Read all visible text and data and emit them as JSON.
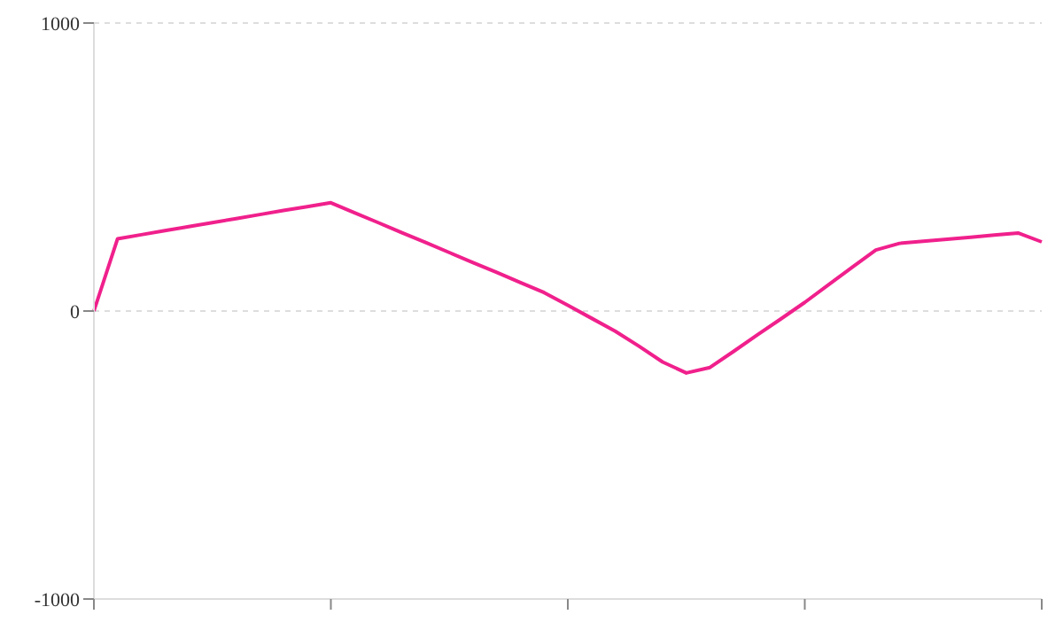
{
  "chart_data": {
    "type": "line",
    "tick_labels": "y",
    "categories": [
      null,
      null,
      null,
      null,
      null,
      null,
      null,
      null,
      null,
      null,
      null,
      null,
      null,
      null,
      null,
      null,
      null,
      null,
      null,
      null,
      null,
      null,
      null,
      null,
      null,
      null,
      null,
      null,
      null,
      null,
      null,
      null,
      null,
      null,
      null,
      null,
      null,
      null,
      null,
      null,
      null
    ],
    "ylim": [
      -1000,
      1000
    ],
    "yticks": [
      -1000,
      0,
      1000
    ],
    "grid": "y",
    "marker": "none",
    "line_style": "solid",
    "series": [
      {
        "color": "#f0208c",
        "values": [
          0,
          251,
          265,
          279,
          293,
          307,
          321,
          335,
          349,
          362,
          376,
          341,
          307,
          272,
          238,
          203,
          168,
          134,
          99,
          64,
          20,
          -25,
          -70,
          -122,
          -177,
          -215,
          -196,
          -140,
          -83,
          -27,
          30,
          91,
          152,
          212,
          235,
          242,
          249,
          256,
          264,
          271,
          240
        ]
      }
    ]
  }
}
